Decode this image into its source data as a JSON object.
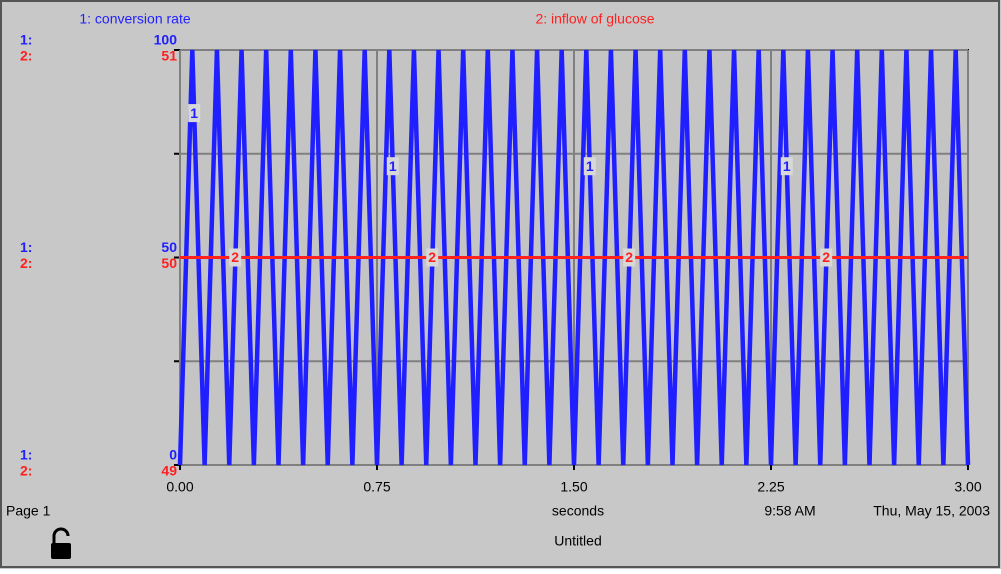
{
  "chart_data": {
    "type": "line",
    "x_label": "seconds",
    "xlim": [
      0,
      3
    ],
    "xticks": [
      {
        "value": 0,
        "label": "0.00"
      },
      {
        "value": 0.75,
        "label": "0.75"
      },
      {
        "value": 1.5,
        "label": "1.50"
      },
      {
        "value": 2.25,
        "label": "2.25"
      },
      {
        "value": 3,
        "label": "3.00"
      }
    ],
    "ylim": [
      0,
      100
    ],
    "yticks": [
      0,
      {
        "value": 25,
        "label": null
      },
      50,
      {
        "value": 75,
        "label": null
      },
      100
    ],
    "y2lim": [
      49,
      51
    ],
    "y2ticks": [
      49,
      50,
      51
    ],
    "grid": true,
    "series": [
      {
        "name": "1: conversion rate",
        "key": "1",
        "axis_key": "1:",
        "color": "#1f1fff",
        "x": [
          0,
          0.046875,
          0.09375,
          0.140625,
          0.1875,
          0.234375,
          0.28125,
          0.328125,
          0.375,
          0.421875,
          0.46875,
          0.515625,
          0.5625,
          0.609375,
          0.65625,
          0.703125,
          0.75,
          0.796875,
          0.84375,
          0.890625,
          0.9375,
          0.984375,
          1.03125,
          1.078125,
          1.125,
          1.171875,
          1.21875,
          1.265625,
          1.3125,
          1.359375,
          1.40625,
          1.453125,
          1.5,
          1.546875,
          1.59375,
          1.640625,
          1.6875,
          1.734375,
          1.78125,
          1.828125,
          1.875,
          1.921875,
          1.96875,
          2.015625,
          2.0625,
          2.109375,
          2.15625,
          2.203125,
          2.25,
          2.296875,
          2.34375,
          2.390625,
          2.4375,
          2.484375,
          2.53125,
          2.578125,
          2.625,
          2.671875,
          2.71875,
          2.765625,
          2.8125,
          2.859375,
          2.90625,
          2.953125,
          3
        ],
        "values": [
          0,
          100,
          0,
          100,
          0,
          100,
          0,
          100,
          0,
          100,
          0,
          100,
          0,
          100,
          0,
          100,
          0,
          100,
          0,
          100,
          0,
          100,
          0,
          100,
          0,
          100,
          0,
          100,
          0,
          100,
          0,
          100,
          0,
          100,
          0,
          100,
          0,
          100,
          0,
          100,
          0,
          100,
          0,
          100,
          0,
          100,
          0,
          100,
          0,
          100,
          0,
          100,
          0,
          100,
          0,
          100,
          0,
          100,
          0,
          100,
          0,
          100,
          0,
          100,
          0
        ]
      },
      {
        "name": "2: inflow of glucose",
        "key": "2",
        "axis_key": "2:",
        "color": "#ff2020",
        "axis": "y2",
        "x": [
          0,
          3
        ],
        "values": [
          50,
          50
        ]
      }
    ]
  },
  "footer": {
    "page": "Page 1",
    "time": "9:58 AM",
    "date": "Thu, May 15, 2003",
    "file": "Untitled"
  }
}
